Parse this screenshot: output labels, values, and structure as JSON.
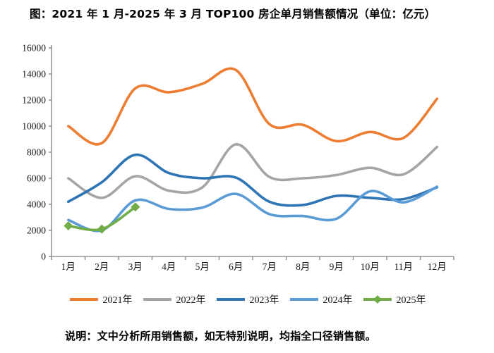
{
  "title": "图：2021 年 1 月-2025 年 3 月 TOP100 房企单月销售额情况（单位：亿元）",
  "note": "说明：文中分析所用销售额，如无特别说明，均指全口径销售额。",
  "chart_data": {
    "type": "line",
    "title": "图：2021 年 1 月-2025 年 3 月 TOP100 房企单月销售额情况（单位：亿元）",
    "categories": [
      "1月",
      "2月",
      "3月",
      "4月",
      "5月",
      "6月",
      "7月",
      "8月",
      "9月",
      "10月",
      "11月",
      "12月"
    ],
    "series": [
      {
        "name": "2021年",
        "color": "#ED7D31",
        "marker": "none",
        "values": [
          10000,
          8700,
          12900,
          12600,
          13250,
          14300,
          10150,
          10100,
          8850,
          9550,
          9100,
          12100
        ]
      },
      {
        "name": "2022年",
        "color": "#A5A5A5",
        "marker": "none",
        "values": [
          6000,
          4500,
          6150,
          5050,
          5300,
          8600,
          6100,
          6000,
          6250,
          6800,
          6300,
          8400
        ]
      },
      {
        "name": "2023年",
        "color": "#2E75B6",
        "marker": "none",
        "values": [
          4200,
          5700,
          7800,
          6400,
          6000,
          6050,
          4200,
          3950,
          4650,
          4500,
          4400,
          5300
        ]
      },
      {
        "name": "2024年",
        "color": "#5B9BD5",
        "marker": "none",
        "values": [
          2800,
          2000,
          4300,
          3650,
          3750,
          4800,
          3250,
          3100,
          2900,
          5000,
          4150,
          5350
        ]
      },
      {
        "name": "2025年",
        "color": "#70AD47",
        "marker": "diamond",
        "values": [
          2350,
          2100,
          3800
        ]
      }
    ],
    "xlabel": "",
    "ylabel": "",
    "ylim": [
      0,
      16000
    ],
    "yticks": [
      0,
      2000,
      4000,
      6000,
      8000,
      10000,
      12000,
      14000,
      16000
    ],
    "grid": false,
    "legend_position": "bottom",
    "line_smoothing": true
  }
}
